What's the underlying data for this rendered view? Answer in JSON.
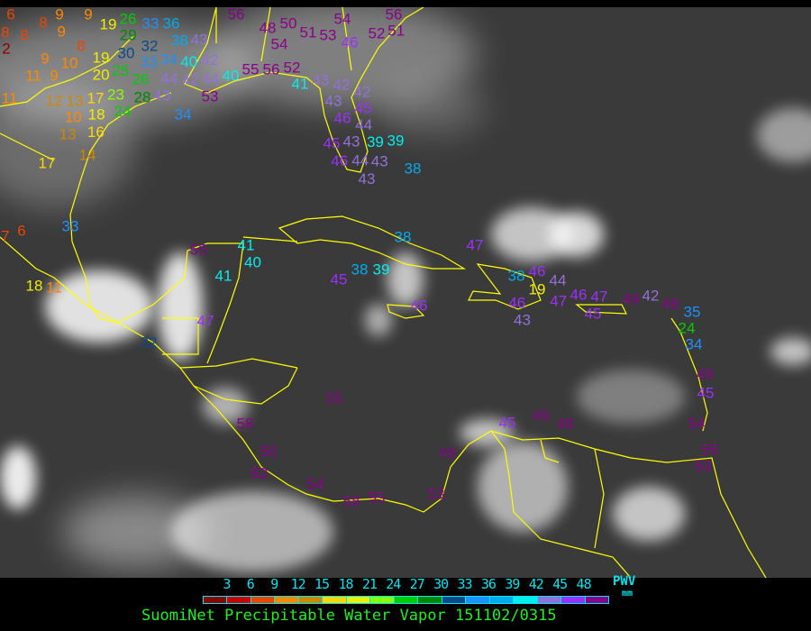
{
  "map": {
    "type": "satellite-ir-with-station-values",
    "background_color": "#3a3a3a",
    "boundary_color": "#ffff00",
    "stations": [
      "6",
      "8",
      "9",
      "9",
      "8",
      "8",
      "9",
      "2",
      "8",
      "9",
      "10",
      "11",
      "9",
      "11",
      "12",
      "13",
      "17",
      "10",
      "18",
      "16",
      "13",
      "14",
      "17",
      "19",
      "26",
      "29",
      "30",
      "32",
      "33",
      "19",
      "25",
      "20",
      "23",
      "26",
      "24",
      "28",
      "33",
      "36",
      "38",
      "34",
      "40",
      "43",
      "42",
      "44",
      "42",
      "43",
      "44",
      "40",
      "53",
      "34",
      "56",
      "48",
      "50",
      "54",
      "51",
      "53",
      "54",
      "46",
      "52",
      "56",
      "51",
      "55",
      "56",
      "52",
      "41",
      "43",
      "42",
      "42",
      "43",
      "45",
      "46",
      "44",
      "43",
      "39",
      "39",
      "45",
      "46",
      "44",
      "43",
      "43",
      "38",
      "38",
      "47",
      "38",
      "39",
      "45",
      "46",
      "38",
      "46",
      "44",
      "19",
      "46",
      "43",
      "47",
      "46",
      "47",
      "45",
      "49",
      "42",
      "48",
      "35",
      "24",
      "34",
      "49",
      "45",
      "55",
      "45",
      "49",
      "48",
      "54",
      "49",
      "55",
      "53",
      "7",
      "6",
      "33",
      "18",
      "11",
      "55",
      "41",
      "40",
      "41",
      "47",
      "32",
      "58",
      "50",
      "62",
      "54",
      "58",
      "55",
      "53"
    ]
  },
  "legend": {
    "ticks": [
      "3",
      "6",
      "9",
      "12",
      "15",
      "18",
      "21",
      "24",
      "27",
      "30",
      "33",
      "36",
      "39",
      "42",
      "45",
      "48"
    ],
    "colors": [
      "#8b0000",
      "#cc0000",
      "#ee4400",
      "#ff8800",
      "#cc8800",
      "#ffd700",
      "#eeee00",
      "#88ff00",
      "#00cc00",
      "#008800",
      "#0a4a8a",
      "#1e90ff",
      "#00aaee",
      "#00eeee",
      "#9370db",
      "#9b30ff",
      "#8b008b"
    ],
    "unit": "PWV",
    "unit_sub": "mm",
    "title": "SuomiNet Precipitable Water Vapor 151102/0315"
  }
}
